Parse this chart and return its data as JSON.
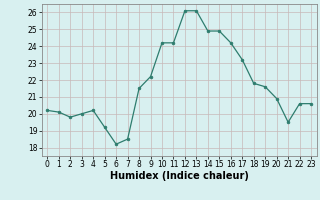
{
  "x": [
    0,
    1,
    2,
    3,
    4,
    5,
    6,
    7,
    8,
    9,
    10,
    11,
    12,
    13,
    14,
    15,
    16,
    17,
    18,
    19,
    20,
    21,
    22,
    23
  ],
  "y": [
    20.2,
    20.1,
    19.8,
    20.0,
    20.2,
    19.2,
    18.2,
    18.5,
    21.5,
    22.2,
    24.2,
    24.2,
    26.1,
    26.1,
    24.9,
    24.9,
    24.2,
    23.2,
    21.8,
    21.6,
    20.9,
    19.5,
    20.6,
    20.6
  ],
  "line_color": "#2e7d6e",
  "marker": "o",
  "marker_size": 2.0,
  "line_width": 0.9,
  "xlabel": "Humidex (Indice chaleur)",
  "ylim": [
    17.5,
    26.5
  ],
  "yticks": [
    18,
    19,
    20,
    21,
    22,
    23,
    24,
    25,
    26
  ],
  "xticks": [
    0,
    1,
    2,
    3,
    4,
    5,
    6,
    7,
    8,
    9,
    10,
    11,
    12,
    13,
    14,
    15,
    16,
    17,
    18,
    19,
    20,
    21,
    22,
    23
  ],
  "bg_color": "#d8f0f0",
  "grid_color": "#c8b8b8",
  "tick_label_size": 5.5,
  "xlabel_size": 7.0
}
